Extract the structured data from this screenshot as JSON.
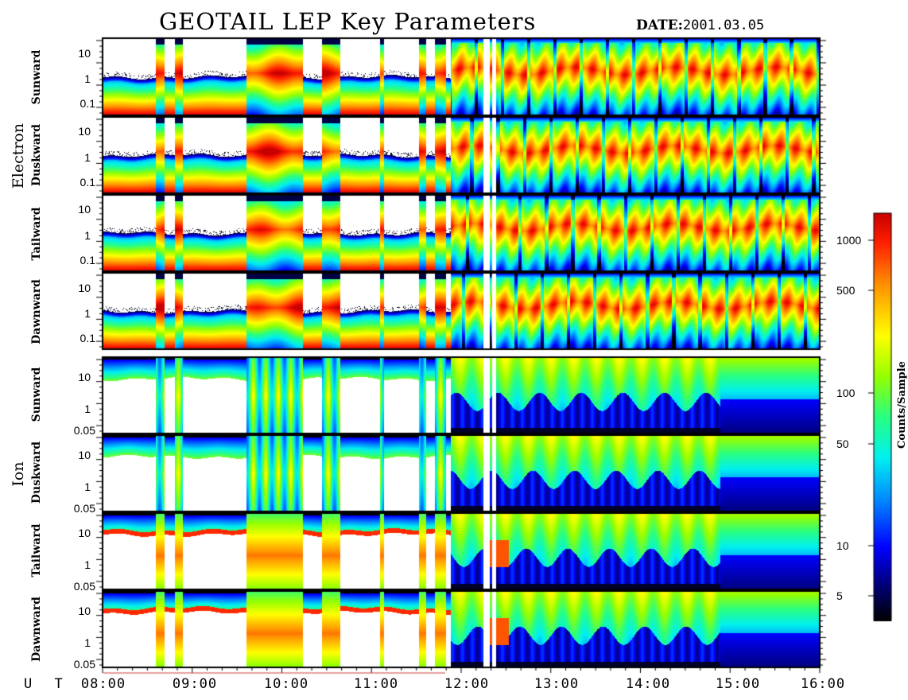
{
  "title": "GEOTAIL LEP Key Parameters",
  "date_label": "DATE:",
  "date_value": "2001.03.05",
  "time_axis_label": "U T",
  "time_ticks": [
    "08:00",
    "09:00",
    "10:00",
    "11:00",
    "12:00",
    "13:00",
    "14:00",
    "15:00",
    "16:00"
  ],
  "species": [
    "Electron",
    "Ion"
  ],
  "directions": [
    "Sunward",
    "Duskward",
    "Tailward",
    "Dawnward"
  ],
  "electron_yticks": [
    "10",
    "1",
    "0.1"
  ],
  "ion_yticks": [
    "10",
    "1",
    "0.05"
  ],
  "colorbar": {
    "label": "Counts/Sample",
    "ticks": [
      "1000",
      "500",
      "100",
      "50",
      "10",
      "5"
    ],
    "colors": [
      "#000000",
      "#000080",
      "#0000ff",
      "#0080ff",
      "#00ffff",
      "#00ff80",
      "#80ff00",
      "#ffff00",
      "#ff8000",
      "#ff0000",
      "#c00000"
    ]
  },
  "chart_data": {
    "type": "heatmap",
    "title": "GEOTAIL LEP Key Parameters",
    "date": "2001.03.05",
    "x_axis": {
      "label": "U T",
      "range": [
        "08:00",
        "16:00"
      ],
      "ticks": [
        "08:00",
        "09:00",
        "10:00",
        "11:00",
        "12:00",
        "13:00",
        "14:00",
        "15:00",
        "16:00"
      ]
    },
    "colorbar": {
      "label": "Counts/Sample",
      "scale": "log",
      "range": [
        3,
        1500
      ],
      "ticks": [
        5,
        10,
        50,
        100,
        500,
        1000
      ]
    },
    "panels": [
      {
        "species": "Electron",
        "direction": "Sunward",
        "y_scale": "log",
        "y_ticks": [
          0.1,
          1,
          10
        ]
      },
      {
        "species": "Electron",
        "direction": "Duskward",
        "y_scale": "log",
        "y_ticks": [
          0.1,
          1,
          10
        ]
      },
      {
        "species": "Electron",
        "direction": "Tailward",
        "y_scale": "log",
        "y_ticks": [
          0.1,
          1,
          10
        ]
      },
      {
        "species": "Electron",
        "direction": "Dawnward",
        "y_scale": "log",
        "y_ticks": [
          0.1,
          1,
          10
        ]
      },
      {
        "species": "Ion",
        "direction": "Sunward",
        "y_scale": "log",
        "y_ticks": [
          0.05,
          1,
          10
        ]
      },
      {
        "species": "Ion",
        "direction": "Duskward",
        "y_scale": "log",
        "y_ticks": [
          0.05,
          1,
          10
        ]
      },
      {
        "species": "Ion",
        "direction": "Tailward",
        "y_scale": "log",
        "y_ticks": [
          0.05,
          1,
          10
        ]
      },
      {
        "species": "Ion",
        "direction": "Dawnward",
        "y_scale": "log",
        "y_ticks": [
          0.05,
          1,
          10
        ]
      }
    ],
    "regime_boundary_time": "11:55"
  }
}
